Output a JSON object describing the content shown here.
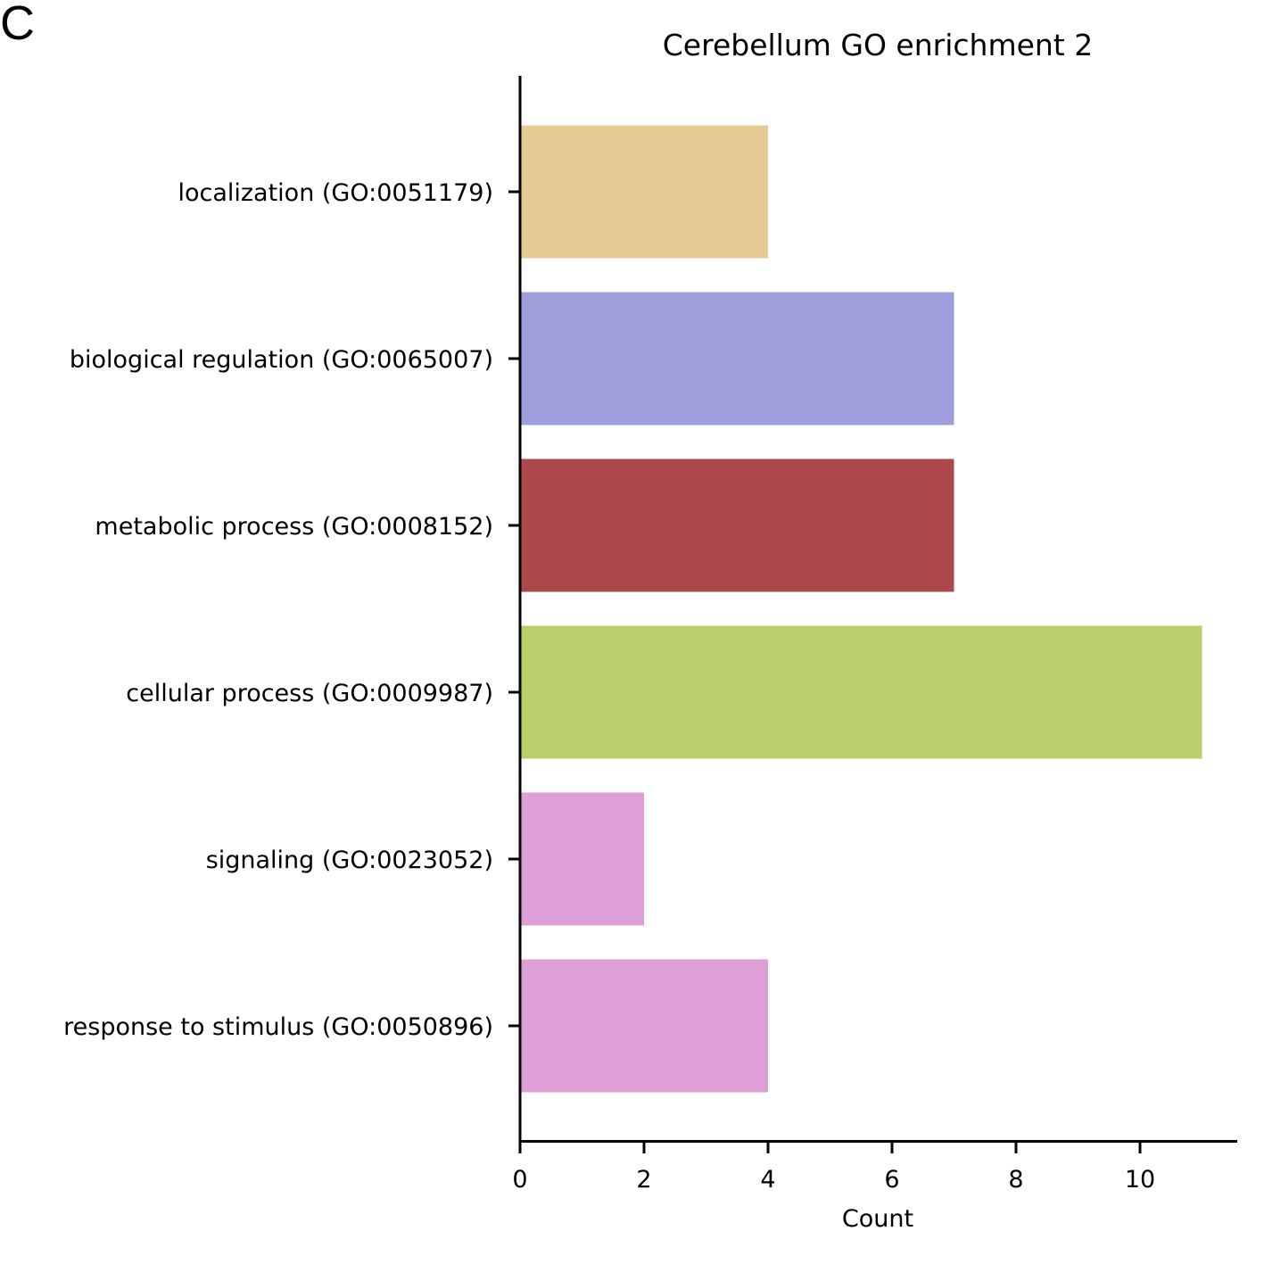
{
  "panel_label": "C",
  "chart_data": {
    "type": "bar",
    "orientation": "horizontal",
    "title": "Cerebellum GO enrichment 2",
    "xlabel": "Count",
    "ylabel": "",
    "xlim": [
      0,
      11.55
    ],
    "x_ticks": [
      0,
      2,
      4,
      6,
      8,
      10
    ],
    "grid": false,
    "categories": [
      "localization (GO:0051179)",
      "biological regulation (GO:0065007)",
      "metabolic process (GO:0008152)",
      "cellular process (GO:0009987)",
      "signaling (GO:0023052)",
      "response to stimulus (GO:0050896)"
    ],
    "values": [
      4,
      7,
      7,
      11,
      2,
      4
    ],
    "colors": [
      "#e5cc95",
      "#9e9edc",
      "#ad494a",
      "#b8cf6b",
      "#de9ed6",
      "#de9ed6"
    ]
  }
}
